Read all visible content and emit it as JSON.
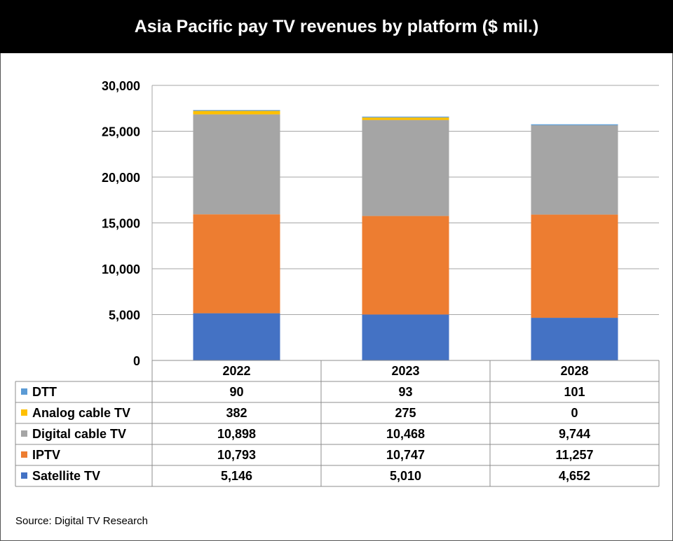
{
  "title": "Asia Pacific pay TV revenues by platform ($ mil.)",
  "source": "Source: Digital TV Research",
  "chart_data": {
    "type": "bar",
    "stacked": true,
    "categories": [
      "2022",
      "2023",
      "2028"
    ],
    "ylim": [
      0,
      30000
    ],
    "yticks": [
      0,
      5000,
      10000,
      15000,
      20000,
      25000,
      30000
    ],
    "ytick_labels": [
      "0",
      "5,000",
      "10,000",
      "15,000",
      "20,000",
      "25,000",
      "30,000"
    ],
    "grid": true,
    "legend": "data table below chart",
    "series": [
      {
        "name": "Satellite TV",
        "color": "#4472C4",
        "values": [
          5146,
          5010,
          4652
        ],
        "labels": [
          "5,146",
          "5,010",
          "4,652"
        ]
      },
      {
        "name": "IPTV",
        "color": "#ED7D31",
        "values": [
          10793,
          10747,
          11257
        ],
        "labels": [
          "10,793",
          "10,747",
          "11,257"
        ]
      },
      {
        "name": "Digital cable TV",
        "color": "#A5A5A5",
        "values": [
          10898,
          10468,
          9744
        ],
        "labels": [
          "10,898",
          "10,468",
          "9,744"
        ]
      },
      {
        "name": "Analog cable TV",
        "color": "#FFC000",
        "values": [
          382,
          275,
          0
        ],
        "labels": [
          "382",
          "275",
          "0"
        ]
      },
      {
        "name": "DTT",
        "color": "#5B9BD5",
        "values": [
          90,
          93,
          101
        ],
        "labels": [
          "90",
          "93",
          "101"
        ]
      }
    ]
  }
}
